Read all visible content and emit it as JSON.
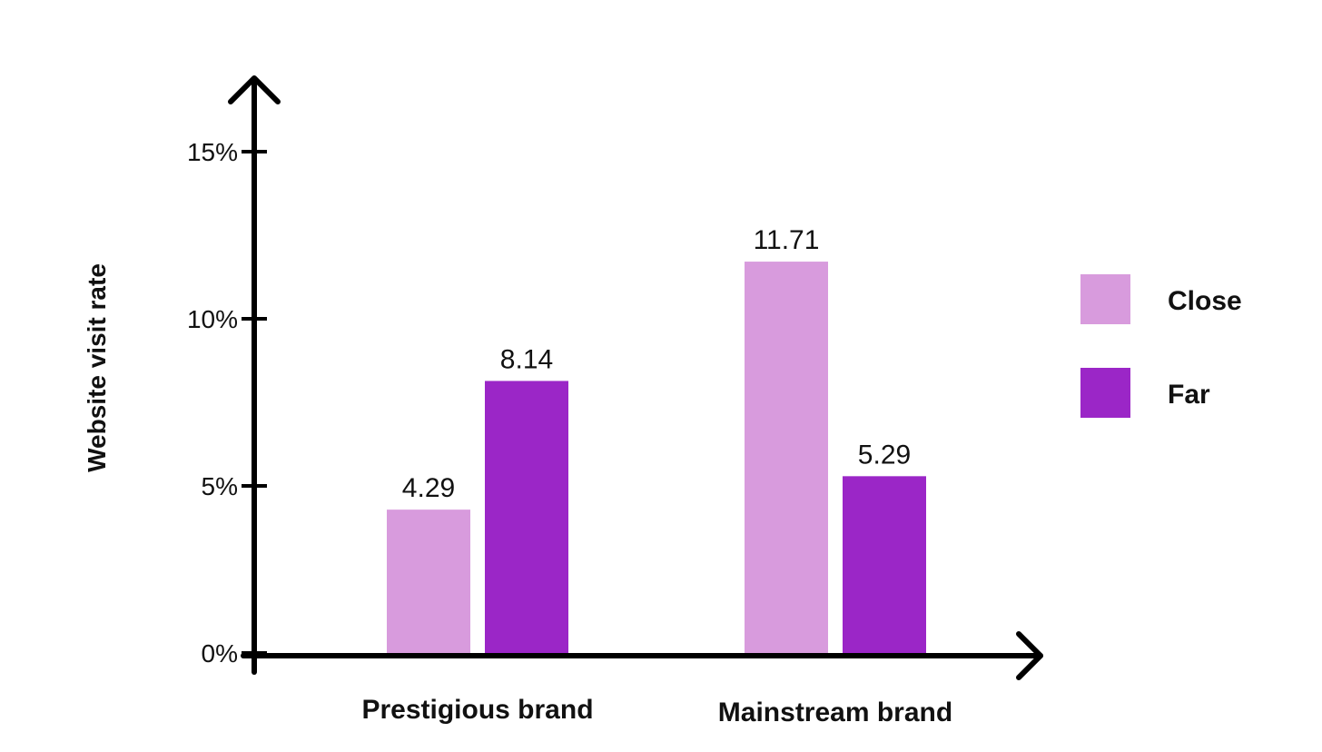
{
  "chart_data": {
    "type": "bar",
    "title": "",
    "xlabel": "",
    "ylabel": "Website visit rate",
    "ylim": [
      0,
      15
    ],
    "yticks": [
      {
        "value": 0,
        "label": "0%"
      },
      {
        "value": 5,
        "label": "5%"
      },
      {
        "value": 10,
        "label": "10%"
      },
      {
        "value": 15,
        "label": "15%"
      }
    ],
    "categories": [
      "Prestigious brand",
      "Mainstream brand"
    ],
    "series": [
      {
        "name": "Close",
        "color": "#d89bdd",
        "values": [
          4.29,
          11.71
        ],
        "labels": [
          "4.29",
          "11.71"
        ]
      },
      {
        "name": "Far",
        "color": "#9b26c7",
        "values": [
          8.14,
          5.29
        ],
        "labels": [
          "8.14",
          "5.29"
        ]
      }
    ],
    "grid": false,
    "legend": "right"
  }
}
